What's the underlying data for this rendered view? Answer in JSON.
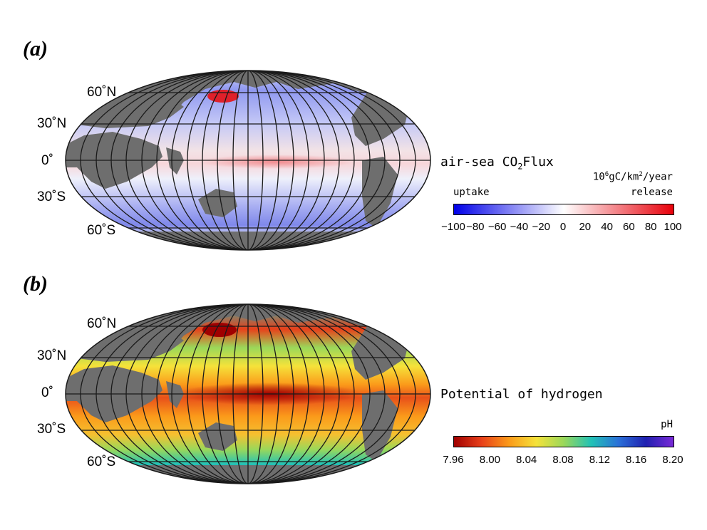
{
  "panels": [
    {
      "label": "(a)",
      "lat_labels": [
        "60˚N",
        "30˚N",
        "0˚",
        "30˚S",
        "60˚S"
      ],
      "legend": {
        "title_prefix": "air-sea CO",
        "title_sub": "2",
        "title_suffix": "Flux",
        "unit_a": "10",
        "unit_a_sup": "6",
        "unit_b": "gC/km",
        "unit_b_sup": "2",
        "unit_c": "/year",
        "left_note": "uptake",
        "right_note": "release",
        "ticks": [
          "−100",
          "−80",
          "−60",
          "−40",
          "−20",
          "0",
          "20",
          "40",
          "60",
          "80",
          "100"
        ],
        "colors": [
          "#0000e8",
          "#ffffff",
          "#e8000a"
        ]
      }
    },
    {
      "label": "(b)",
      "lat_labels": [
        "60˚N",
        "30˚N",
        "0˚",
        "30˚S",
        "60˚S"
      ],
      "legend": {
        "title": "Potential of hydrogen",
        "unit": "pH",
        "ticks": [
          "7.96",
          "8.00",
          "8.04",
          "8.08",
          "8.12",
          "8.16",
          "8.20"
        ],
        "colors": [
          "#a00000",
          "#e8401a",
          "#fb9a1a",
          "#f5e23a",
          "#9ad85a",
          "#22c2b6",
          "#2a70d8",
          "#2020b0",
          "#7a2ad8"
        ]
      }
    }
  ],
  "map_colors": {
    "land": "#6e6e6e",
    "grid": "#1a1a1a"
  }
}
